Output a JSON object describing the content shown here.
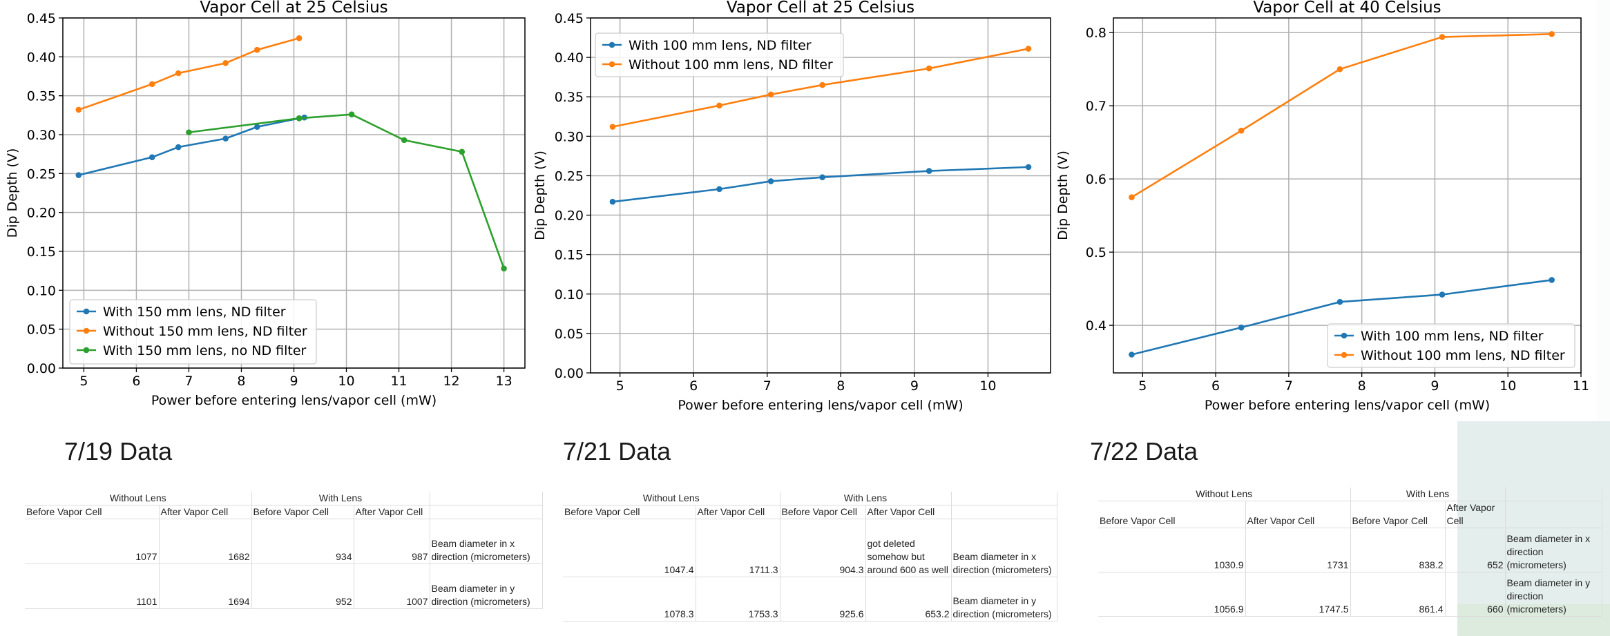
{
  "chart_data": [
    {
      "type": "line",
      "title": "Vapor Cell at 25 Celsius",
      "xlabel": "Power before entering lens/vapor cell (mW)",
      "ylabel": "Dip Depth (V)",
      "xlim": [
        4.6,
        13.4
      ],
      "ylim": [
        0.0,
        0.45
      ],
      "xticks": [
        5,
        6,
        7,
        8,
        9,
        10,
        11,
        12,
        13
      ],
      "yticks": [
        0.0,
        0.05,
        0.1,
        0.15,
        0.2,
        0.25,
        0.3,
        0.35,
        0.4,
        0.45
      ],
      "ytick_labels": [
        "0.00",
        "0.05",
        "0.10",
        "0.15",
        "0.20",
        "0.25",
        "0.30",
        "0.35",
        "0.40",
        "0.45"
      ],
      "grid": true,
      "legend_position": "lower-left",
      "series": [
        {
          "name": "With 150 mm lens, ND filter",
          "color": "#1f77b4",
          "x": [
            4.9,
            6.3,
            6.8,
            7.7,
            8.3,
            9.1,
            9.2
          ],
          "y": [
            0.248,
            0.271,
            0.284,
            0.295,
            0.31,
            0.321,
            0.322
          ]
        },
        {
          "name": "Without 150 mm lens, ND filter",
          "color": "#ff7f0e",
          "x": [
            4.9,
            6.3,
            6.8,
            7.7,
            8.3,
            9.1
          ],
          "y": [
            0.332,
            0.365,
            0.379,
            0.392,
            0.409,
            0.424
          ]
        },
        {
          "name": "With 150 mm lens, no ND filter",
          "color": "#2ca02c",
          "x": [
            7.0,
            9.1,
            10.1,
            11.1,
            12.2,
            13.0
          ],
          "y": [
            0.303,
            0.321,
            0.326,
            0.293,
            0.278,
            0.128
          ]
        }
      ]
    },
    {
      "type": "line",
      "title": "Vapor Cell at 25 Celsius",
      "xlabel": "Power before entering lens/vapor cell (mW)",
      "ylabel": "Dip Depth (V)",
      "xlim": [
        4.6,
        10.85
      ],
      "ylim": [
        0.0,
        0.45
      ],
      "xticks": [
        5,
        6,
        7,
        8,
        9,
        10
      ],
      "yticks": [
        0.0,
        0.05,
        0.1,
        0.15,
        0.2,
        0.25,
        0.3,
        0.35,
        0.4,
        0.45
      ],
      "ytick_labels": [
        "0.00",
        "0.05",
        "0.10",
        "0.15",
        "0.20",
        "0.25",
        "0.30",
        "0.35",
        "0.40",
        "0.45"
      ],
      "grid": true,
      "legend_position": "upper-left",
      "series": [
        {
          "name": "With 100 mm lens, ND filter",
          "color": "#1f77b4",
          "x": [
            4.9,
            6.35,
            7.05,
            7.75,
            9.2,
            10.55
          ],
          "y": [
            0.217,
            0.233,
            0.243,
            0.248,
            0.256,
            0.261
          ]
        },
        {
          "name": "Without 100 mm lens, ND filter",
          "color": "#ff7f0e",
          "x": [
            4.9,
            6.35,
            7.05,
            7.75,
            9.2,
            10.55
          ],
          "y": [
            0.312,
            0.339,
            0.353,
            0.365,
            0.386,
            0.411
          ]
        }
      ]
    },
    {
      "type": "line",
      "title": "Vapor Cell at 40 Celsius",
      "xlabel": "Power before entering lens/vapor cell (mW)",
      "ylabel": "Dip Depth (V)",
      "xlim": [
        4.6,
        11.0
      ],
      "ylim": [
        0.335,
        0.82
      ],
      "xticks": [
        5,
        6,
        7,
        8,
        9,
        10,
        11
      ],
      "yticks": [
        0.4,
        0.5,
        0.6,
        0.7,
        0.8
      ],
      "ytick_labels": [
        "0.4",
        "0.5",
        "0.6",
        "0.7",
        "0.8"
      ],
      "grid": true,
      "legend_position": "lower-right",
      "series": [
        {
          "name": "With 100 mm lens, ND filter",
          "color": "#1f77b4",
          "x": [
            4.85,
            6.35,
            7.7,
            9.1,
            10.6
          ],
          "y": [
            0.36,
            0.397,
            0.432,
            0.442,
            0.462
          ]
        },
        {
          "name": "Without 100 mm lens, ND filter",
          "color": "#ff7f0e",
          "x": [
            4.85,
            6.35,
            7.7,
            9.1,
            10.6
          ],
          "y": [
            0.575,
            0.666,
            0.75,
            0.794,
            0.798
          ]
        }
      ]
    }
  ],
  "sections": [
    {
      "label": "7/19 Data",
      "group_headers": [
        "Without Lens",
        "With Lens"
      ],
      "col_headers": [
        "Before Vapor Cell",
        "After Vapor Cell",
        "Before Vapor Cell",
        "After Vapor Cell"
      ],
      "rows": [
        {
          "values": [
            "1077",
            "1682",
            "934",
            "987"
          ],
          "label": "Beam diameter in x direction (micrometers)"
        },
        {
          "values": [
            "1101",
            "1694",
            "952",
            "1007"
          ],
          "label": "Beam diameter in y direction (micrometers)"
        }
      ]
    },
    {
      "label": "7/21 Data",
      "group_headers": [
        "Without Lens",
        "With Lens"
      ],
      "col_headers": [
        "Before Vapor Cell",
        "After Vapor Cell",
        "Before Vapor Cell",
        "After Vapor Cell"
      ],
      "rows": [
        {
          "values": [
            "1047.4",
            "1711.3",
            "904.3",
            "got deleted somehow but around 600 as well"
          ],
          "label": "Beam diameter in x direction (micrometers)"
        },
        {
          "values": [
            "1078.3",
            "1753.3",
            "925.6",
            "653.2"
          ],
          "label": "Beam diameter in y direction (micrometers)"
        }
      ]
    },
    {
      "label": "7/22 Data",
      "group_headers": [
        "Without Lens",
        "With Lens"
      ],
      "col_headers": [
        "Before Vapor Cell",
        "After Vapor Cell",
        "Before Vapor Cell",
        "After Vapor Cell"
      ],
      "rows": [
        {
          "values": [
            "1030.9",
            "1731",
            "838.2",
            "652"
          ],
          "label": "Beam diameter in x direction (micrometers)"
        },
        {
          "values": [
            "1056.9",
            "1747.5",
            "861.4",
            "660"
          ],
          "label": "Beam diameter in y direction (micrometers)"
        }
      ]
    }
  ]
}
